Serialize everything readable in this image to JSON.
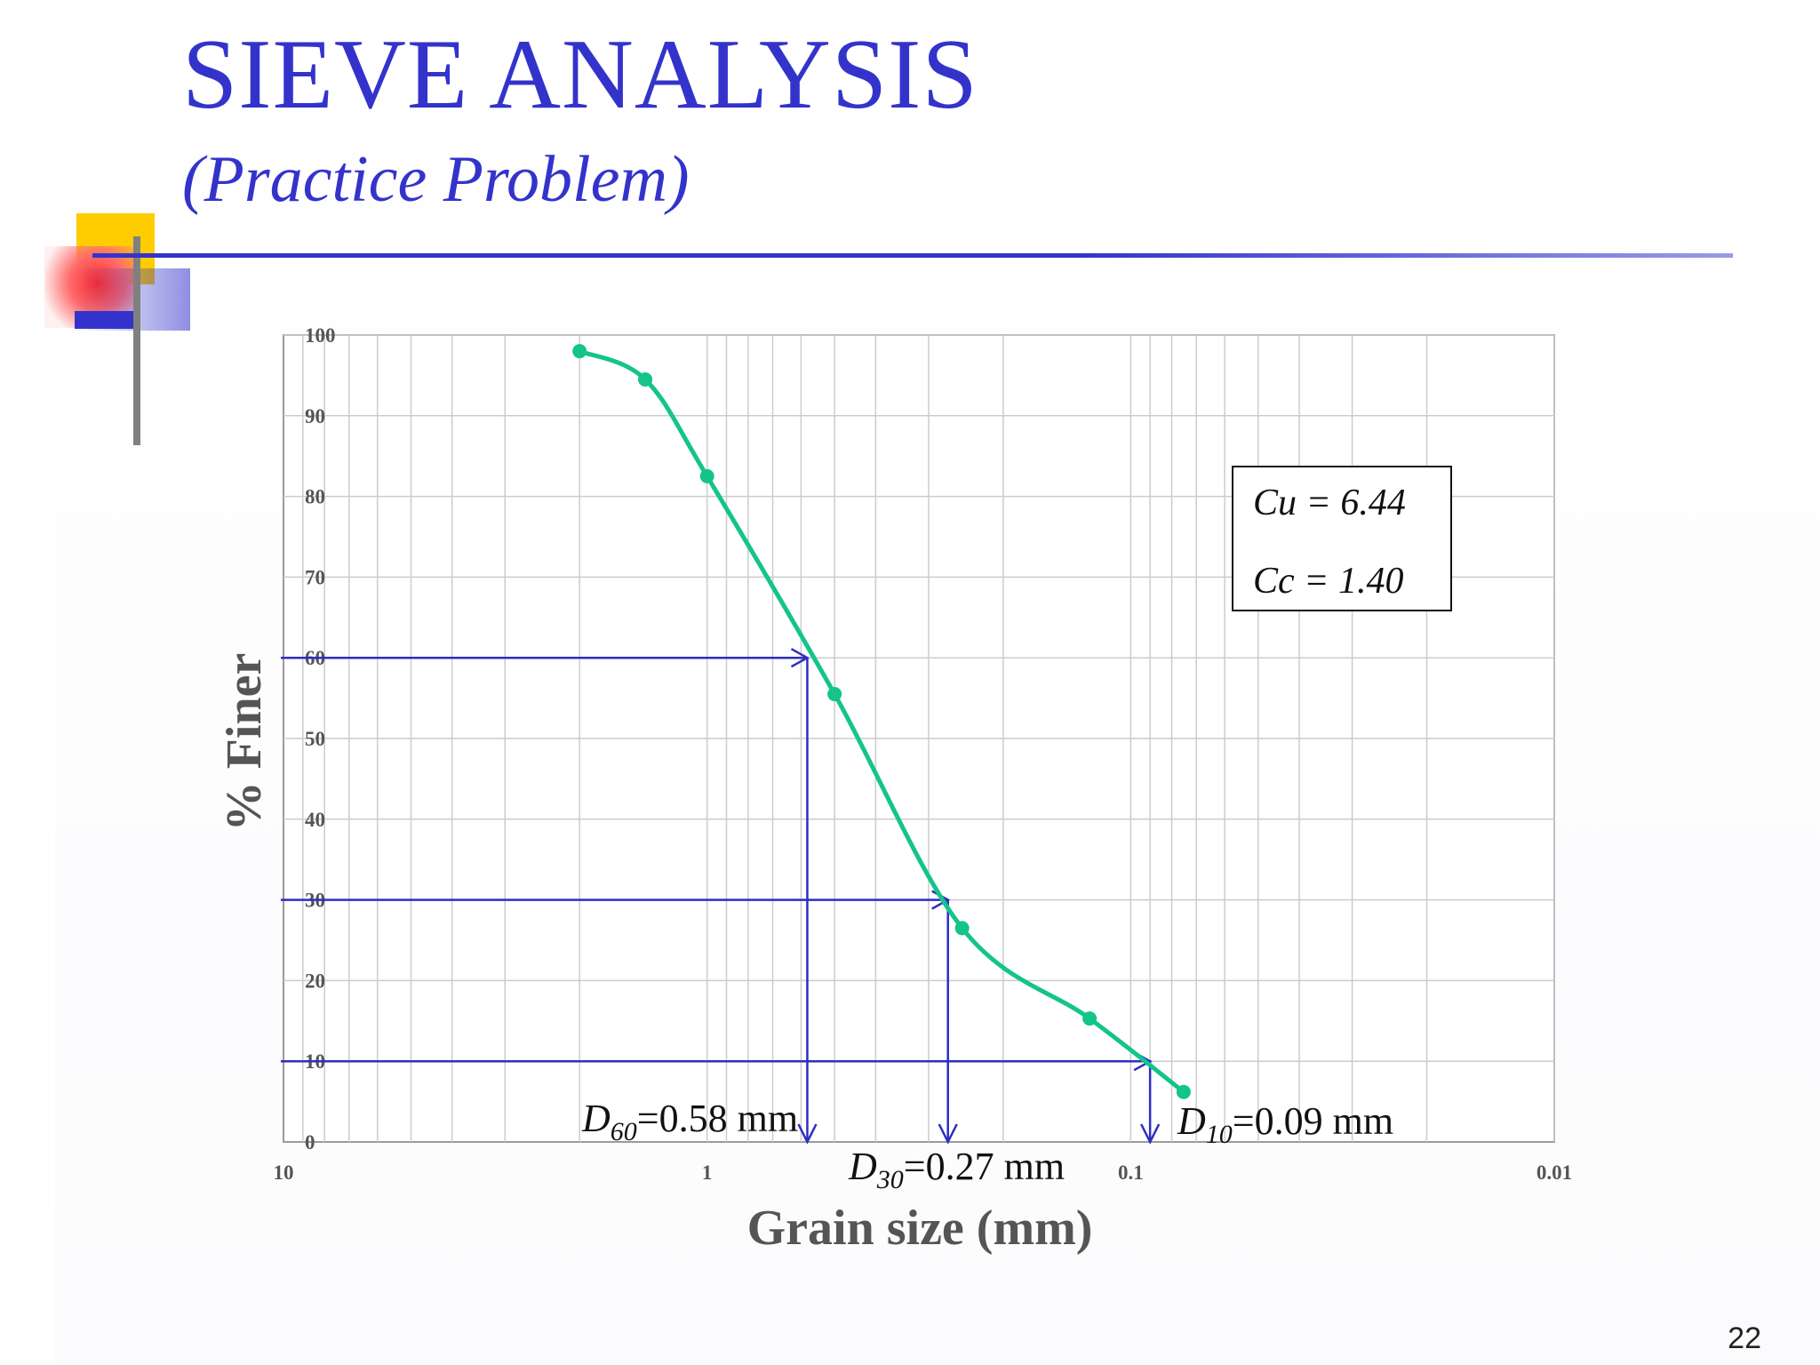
{
  "slide": {
    "title": "SIEVE ANALYSIS",
    "subtitle": "(Practice Problem)",
    "page_number": "22"
  },
  "colors": {
    "title": "#3333cc",
    "curve": "#14c48a",
    "construction_lines": "#2e2ec0",
    "grid": "#cccccc",
    "axis_labels": "#555555"
  },
  "chart_data": {
    "type": "line",
    "xscale": "log",
    "x_reversed": true,
    "xlim": [
      10,
      0.01
    ],
    "ylim": [
      0,
      100
    ],
    "xlabel": "Grain size (mm)",
    "ylabel": "% Finer",
    "x_ticks": [
      "10",
      "1",
      "0.1",
      "0.01"
    ],
    "y_ticks": [
      "0",
      "10",
      "20",
      "30",
      "40",
      "50",
      "60",
      "70",
      "80",
      "90",
      "100"
    ],
    "grid": true,
    "series": [
      {
        "x": [
          2.0,
          1.4,
          1.0,
          0.5,
          0.25,
          0.125,
          0.075
        ],
        "y": [
          98,
          94.5,
          82.5,
          55.5,
          26.5,
          15.3,
          6.2
        ]
      }
    ],
    "construction_lines": [
      {
        "percent_finer": 60,
        "diameter_mm": 0.58
      },
      {
        "percent_finer": 30,
        "diameter_mm": 0.27
      },
      {
        "percent_finer": 10,
        "diameter_mm": 0.09
      }
    ],
    "annotations": {
      "d60": {
        "symbol": "D",
        "subscript": "60",
        "value": "=0.58 mm"
      },
      "d30": {
        "symbol": "D",
        "subscript": "30",
        "value": "=0.27 mm"
      },
      "d10": {
        "symbol": "D",
        "subscript": "10",
        "value": "=0.09 mm"
      },
      "cu": "Cu = 6.44",
      "cc": "Cc = 1.40"
    }
  }
}
